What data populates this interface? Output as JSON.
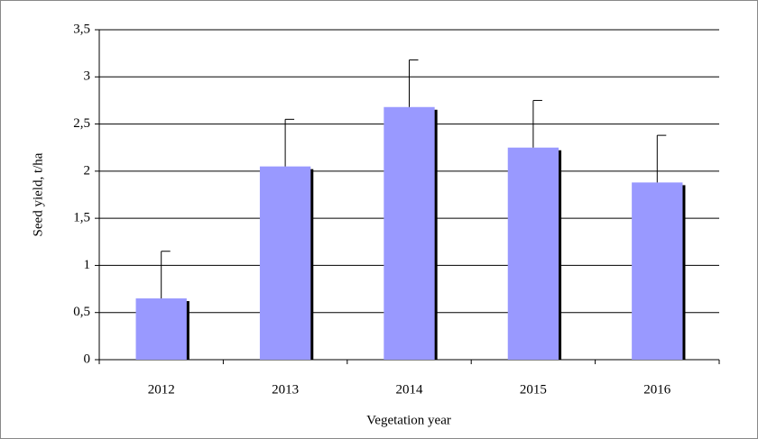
{
  "chart_data": {
    "type": "bar",
    "x_label": "Vegetation year",
    "y_label": "Seed yield, t/ha",
    "categories": [
      "2012",
      "2013",
      "2014",
      "2015",
      "2016"
    ],
    "values": [
      0.65,
      2.05,
      2.68,
      2.25,
      1.88
    ],
    "errors": [
      0.5,
      0.5,
      0.5,
      0.5,
      0.5
    ],
    "color": "#9999ff",
    "ylim": [
      0,
      3.5
    ],
    "yticks": [
      0,
      {
        "value": 0.5,
        "label": "0,5"
      },
      1,
      {
        "value": 1.5,
        "label": "1,5"
      },
      2,
      {
        "value": 2.5,
        "label": "2,5"
      },
      3,
      {
        "value": 3.5,
        "label": "3,5"
      }
    ],
    "grid": true
  }
}
